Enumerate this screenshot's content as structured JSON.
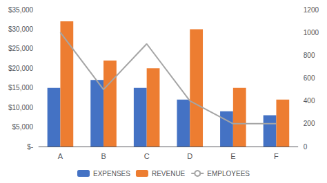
{
  "chart_data": {
    "type": "bar",
    "categories": [
      "A",
      "B",
      "C",
      "D",
      "E",
      "F"
    ],
    "series": [
      {
        "name": "EXPENSES",
        "type": "bar",
        "color": "#4472C4",
        "values": [
          15000,
          17000,
          15000,
          12000,
          9000,
          8000
        ]
      },
      {
        "name": "REVENUE",
        "type": "bar",
        "color": "#ED7D31",
        "values": [
          32000,
          22000,
          20000,
          30000,
          15000,
          12000
        ]
      },
      {
        "name": "EMPLOYEES",
        "type": "line",
        "axis": "y2",
        "color": "#A5A5A5",
        "values": [
          1000,
          500,
          900,
          400,
          200,
          200
        ]
      }
    ],
    "ylim": [
      0,
      35000
    ],
    "yticks": [
      {
        "value": 0,
        "label": "$-"
      },
      {
        "value": 5000,
        "label": "$5,000"
      },
      {
        "value": 10000,
        "label": "$10,000"
      },
      {
        "value": 15000,
        "label": "$15,000"
      },
      {
        "value": 20000,
        "label": "$20,000"
      },
      {
        "value": 25000,
        "label": "$25,000"
      },
      {
        "value": 30000,
        "label": "$30,000"
      },
      {
        "value": 35000,
        "label": "$35,000"
      }
    ],
    "y2lim": [
      0,
      1200
    ],
    "y2ticks": [
      0,
      200,
      400,
      600,
      800,
      1000,
      1200
    ],
    "grid": false,
    "legend": "bottom"
  }
}
